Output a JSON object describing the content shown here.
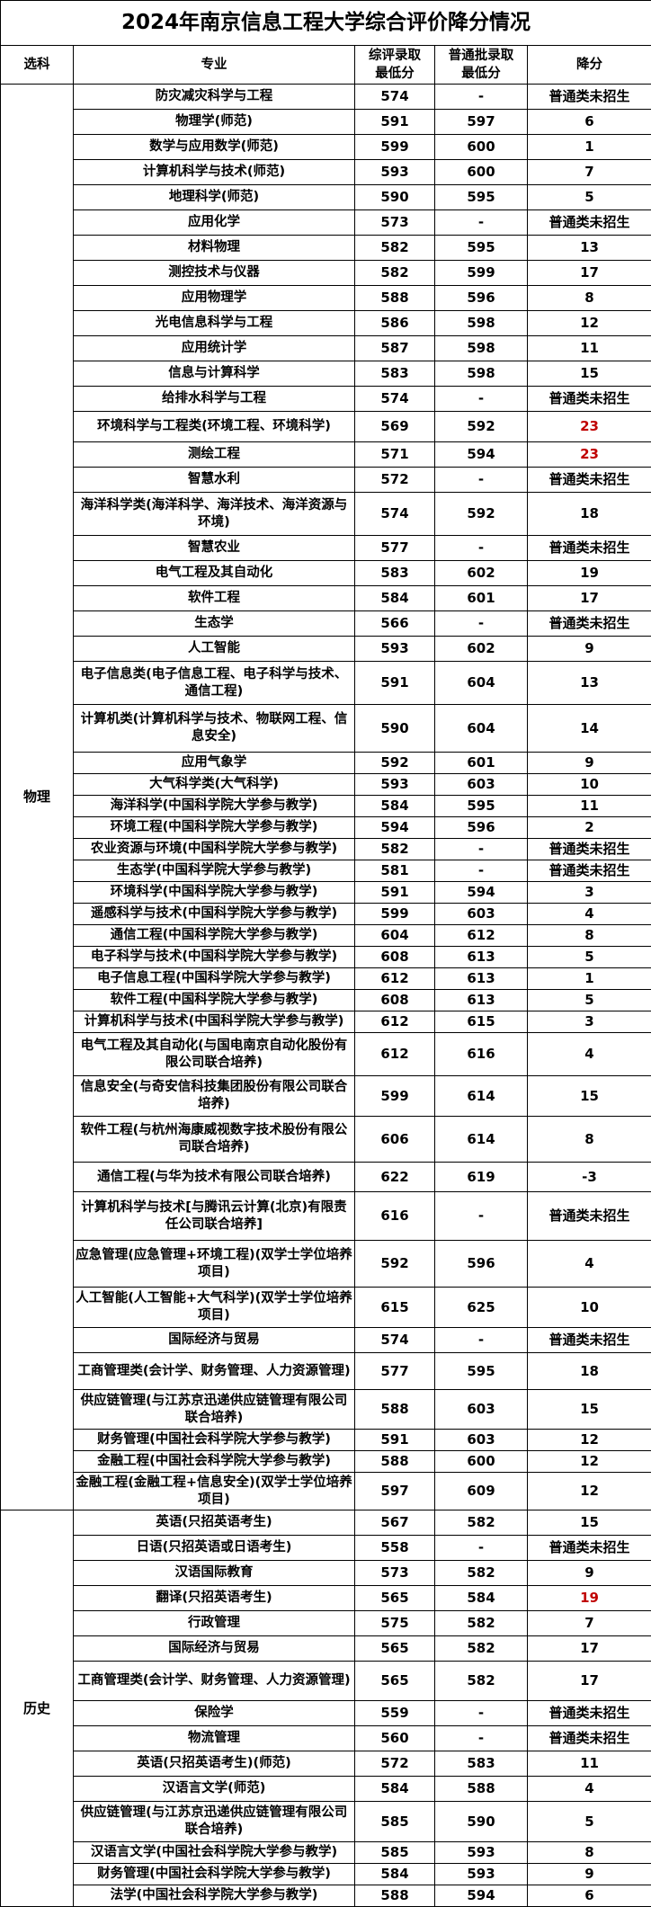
{
  "title": "2024年南京信息工程大学综合评价降分情况",
  "headers": {
    "subject": "选科",
    "major": "专业",
    "comp_min": "综评录取最低分",
    "regular_min": "普通批录取最低分",
    "drop": "降分"
  },
  "accent_color": "#c00000",
  "groups": [
    {
      "subject": "物理",
      "rows": [
        {
          "major": "防灾减灾科学与工程",
          "comp": "574",
          "regular": "-",
          "drop": "普通类未招生"
        },
        {
          "major": "物理学(师范)",
          "comp": "591",
          "regular": "597",
          "drop": "6"
        },
        {
          "major": "数学与应用数学(师范)",
          "comp": "599",
          "regular": "600",
          "drop": "1"
        },
        {
          "major": "计算机科学与技术(师范)",
          "comp": "593",
          "regular": "600",
          "drop": "7"
        },
        {
          "major": "地理科学(师范)",
          "comp": "590",
          "regular": "595",
          "drop": "5"
        },
        {
          "major": "应用化学",
          "comp": "573",
          "regular": "-",
          "drop": "普通类未招生"
        },
        {
          "major": "材料物理",
          "comp": "582",
          "regular": "595",
          "drop": "13"
        },
        {
          "major": "测控技术与仪器",
          "comp": "582",
          "regular": "599",
          "drop": "17"
        },
        {
          "major": "应用物理学",
          "comp": "588",
          "regular": "596",
          "drop": "8"
        },
        {
          "major": "光电信息科学与工程",
          "comp": "586",
          "regular": "598",
          "drop": "12"
        },
        {
          "major": "应用统计学",
          "comp": "587",
          "regular": "598",
          "drop": "11"
        },
        {
          "major": "信息与计算科学",
          "comp": "583",
          "regular": "598",
          "drop": "15"
        },
        {
          "major": "给排水科学与工程",
          "comp": "574",
          "regular": "-",
          "drop": "普通类未招生"
        },
        {
          "major": "环境科学与工程类(环境工程、环境科学)",
          "comp": "569",
          "regular": "592",
          "drop": "23",
          "highlight": true
        },
        {
          "major": "测绘工程",
          "comp": "571",
          "regular": "594",
          "drop": "23",
          "highlight": true
        },
        {
          "major": "智慧水利",
          "comp": "572",
          "regular": "-",
          "drop": "普通类未招生"
        },
        {
          "major": "海洋科学类(海洋科学、海洋技术、海洋资源与环境)",
          "comp": "574",
          "regular": "592",
          "drop": "18"
        },
        {
          "major": "智慧农业",
          "comp": "577",
          "regular": "-",
          "drop": "普通类未招生"
        },
        {
          "major": "电气工程及其自动化",
          "comp": "583",
          "regular": "602",
          "drop": "19"
        },
        {
          "major": "软件工程",
          "comp": "584",
          "regular": "601",
          "drop": "17"
        },
        {
          "major": "生态学",
          "comp": "566",
          "regular": "-",
          "drop": "普通类未招生"
        },
        {
          "major": "人工智能",
          "comp": "593",
          "regular": "602",
          "drop": "9"
        },
        {
          "major": "电子信息类(电子信息工程、电子科学与技术、通信工程)",
          "comp": "591",
          "regular": "604",
          "drop": "13"
        },
        {
          "major": "计算机类(计算机科学与技术、物联网工程、信息安全)",
          "comp": "590",
          "regular": "604",
          "drop": "14"
        },
        {
          "major": "应用气象学",
          "comp": "592",
          "regular": "601",
          "drop": "9"
        },
        {
          "major": "大气科学类(大气科学)",
          "comp": "593",
          "regular": "603",
          "drop": "10"
        },
        {
          "major": "海洋科学(中国科学院大学参与教学)",
          "comp": "584",
          "regular": "595",
          "drop": "11"
        },
        {
          "major": "环境工程(中国科学院大学参与教学)",
          "comp": "594",
          "regular": "596",
          "drop": "2"
        },
        {
          "major": "农业资源与环境(中国科学院大学参与教学)",
          "comp": "582",
          "regular": "-",
          "drop": "普通类未招生"
        },
        {
          "major": "生态学(中国科学院大学参与教学)",
          "comp": "581",
          "regular": "-",
          "drop": "普通类未招生"
        },
        {
          "major": "环境科学(中国科学院大学参与教学)",
          "comp": "591",
          "regular": "594",
          "drop": "3"
        },
        {
          "major": "遥感科学与技术(中国科学院大学参与教学)",
          "comp": "599",
          "regular": "603",
          "drop": "4"
        },
        {
          "major": "通信工程(中国科学院大学参与教学)",
          "comp": "604",
          "regular": "612",
          "drop": "8"
        },
        {
          "major": "电子科学与技术(中国科学院大学参与教学)",
          "comp": "608",
          "regular": "613",
          "drop": "5"
        },
        {
          "major": "电子信息工程(中国科学院大学参与教学)",
          "comp": "612",
          "regular": "613",
          "drop": "1"
        },
        {
          "major": "软件工程(中国科学院大学参与教学)",
          "comp": "608",
          "regular": "613",
          "drop": "5"
        },
        {
          "major": "计算机科学与技术(中国科学院大学参与教学)",
          "comp": "612",
          "regular": "615",
          "drop": "3"
        },
        {
          "major": "电气工程及其自动化(与国电南京自动化股份有限公司联合培养)",
          "comp": "612",
          "regular": "616",
          "drop": "4"
        },
        {
          "major": "信息安全(与奇安信科技集团股份有限公司联合培养)",
          "comp": "599",
          "regular": "614",
          "drop": "15"
        },
        {
          "major": "软件工程(与杭州海康威视数字技术股份有限公司联合培养)",
          "comp": "606",
          "regular": "614",
          "drop": "8"
        },
        {
          "major": "通信工程(与华为技术有限公司联合培养)",
          "comp": "622",
          "regular": "619",
          "drop": "-3"
        },
        {
          "major": "计算机科学与技术[与腾讯云计算(北京)有限责任公司联合培养]",
          "comp": "616",
          "regular": "-",
          "drop": "普通类未招生"
        },
        {
          "major": "应急管理(应急管理+环境工程)(双学士学位培养项目)",
          "comp": "592",
          "regular": "596",
          "drop": "4"
        },
        {
          "major": "人工智能(人工智能+大气科学)(双学士学位培养项目)",
          "comp": "615",
          "regular": "625",
          "drop": "10"
        },
        {
          "major": "国际经济与贸易",
          "comp": "574",
          "regular": "-",
          "drop": "普通类未招生"
        },
        {
          "major": "工商管理类(会计学、财务管理、人力资源管理)",
          "comp": "577",
          "regular": "595",
          "drop": "18"
        },
        {
          "major": "供应链管理(与江苏京迅递供应链管理有限公司联合培养)",
          "comp": "588",
          "regular": "603",
          "drop": "15"
        },
        {
          "major": "财务管理(中国社会科学院大学参与教学)",
          "comp": "591",
          "regular": "603",
          "drop": "12"
        },
        {
          "major": "金融工程(中国社会科学院大学参与教学)",
          "comp": "588",
          "regular": "600",
          "drop": "12"
        },
        {
          "major": "金融工程(金融工程+信息安全)(双学士学位培养项目)",
          "comp": "597",
          "regular": "609",
          "drop": "12"
        }
      ]
    },
    {
      "subject": "历史",
      "rows": [
        {
          "major": "英语(只招英语考生)",
          "comp": "567",
          "regular": "582",
          "drop": "15"
        },
        {
          "major": "日语(只招英语或日语考生)",
          "comp": "558",
          "regular": "-",
          "drop": "普通类未招生"
        },
        {
          "major": "汉语国际教育",
          "comp": "573",
          "regular": "582",
          "drop": "9"
        },
        {
          "major": "翻译(只招英语考生)",
          "comp": "565",
          "regular": "584",
          "drop": "19",
          "highlight": true
        },
        {
          "major": "行政管理",
          "comp": "575",
          "regular": "582",
          "drop": "7"
        },
        {
          "major": "国际经济与贸易",
          "comp": "565",
          "regular": "582",
          "drop": "17"
        },
        {
          "major": "工商管理类(会计学、财务管理、人力资源管理)",
          "comp": "565",
          "regular": "582",
          "drop": "17"
        },
        {
          "major": "保险学",
          "comp": "559",
          "regular": "-",
          "drop": "普通类未招生"
        },
        {
          "major": "物流管理",
          "comp": "560",
          "regular": "-",
          "drop": "普通类未招生"
        },
        {
          "major": "英语(只招英语考生)(师范)",
          "comp": "572",
          "regular": "583",
          "drop": "11"
        },
        {
          "major": "汉语言文学(师范)",
          "comp": "584",
          "regular": "588",
          "drop": "4"
        },
        {
          "major": "供应链管理(与江苏京迅递供应链管理有限公司联合培养)",
          "comp": "585",
          "regular": "590",
          "drop": "5"
        },
        {
          "major": "汉语言文学(中国社会科学院大学参与教学)",
          "comp": "585",
          "regular": "593",
          "drop": "8"
        },
        {
          "major": "财务管理(中国社会科学院大学参与教学)",
          "comp": "584",
          "regular": "593",
          "drop": "9"
        },
        {
          "major": "法学(中国社会科学院大学参与教学)",
          "comp": "588",
          "regular": "594",
          "drop": "6"
        }
      ]
    }
  ]
}
